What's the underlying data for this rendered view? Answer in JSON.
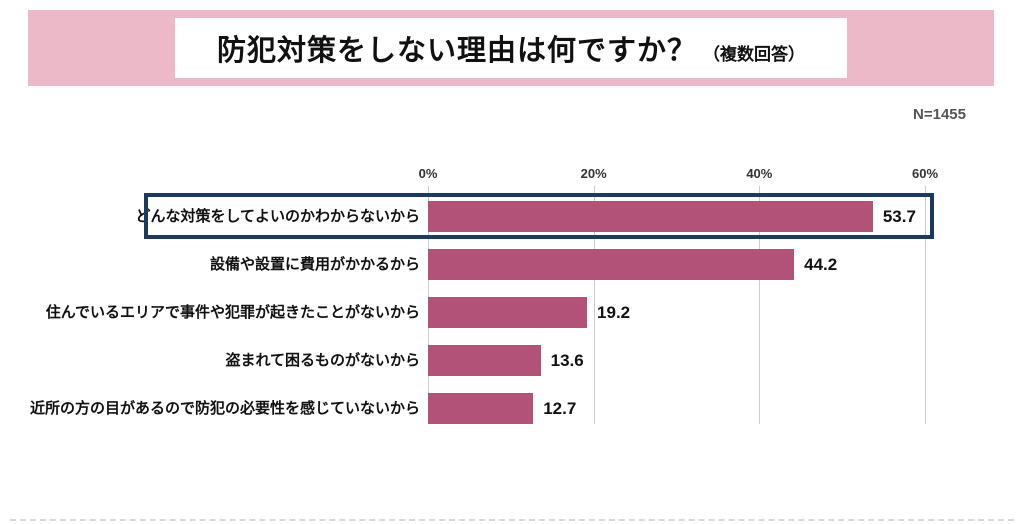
{
  "header": {
    "title": "防犯対策をしない理由は何ですか？",
    "subtitle": "（複数回答）"
  },
  "sample_size": "N=1455",
  "colors": {
    "banner_pink": "#ecb9c9",
    "bar": "#b25278",
    "highlight_border": "#1d3a5e",
    "gridline": "#cccccc"
  },
  "chart_data": {
    "type": "bar",
    "orientation": "horizontal",
    "title": "防犯対策をしない理由は何ですか？（複数回答）",
    "categories": [
      "どんな対策をしてよいのかわからないから",
      "設備や設置に費用がかかるから",
      "住んでいるエリアで事件や犯罪が起きたことがないから",
      "盗まれて困るものがないから",
      "近所の方の目があるので防犯の必要性を感じていないから"
    ],
    "values": [
      53.7,
      44.2,
      19.2,
      13.6,
      12.7
    ],
    "xlim": [
      0,
      60
    ],
    "ticks": [
      "0%",
      "20%",
      "40%",
      "60%"
    ],
    "tick_values": [
      0,
      20,
      40,
      60
    ],
    "grid": true,
    "value_labels": true,
    "legend": "none",
    "bar_color": "#b25278",
    "highlight_index": 0,
    "highlight_border_color": "#1d3a5e"
  }
}
